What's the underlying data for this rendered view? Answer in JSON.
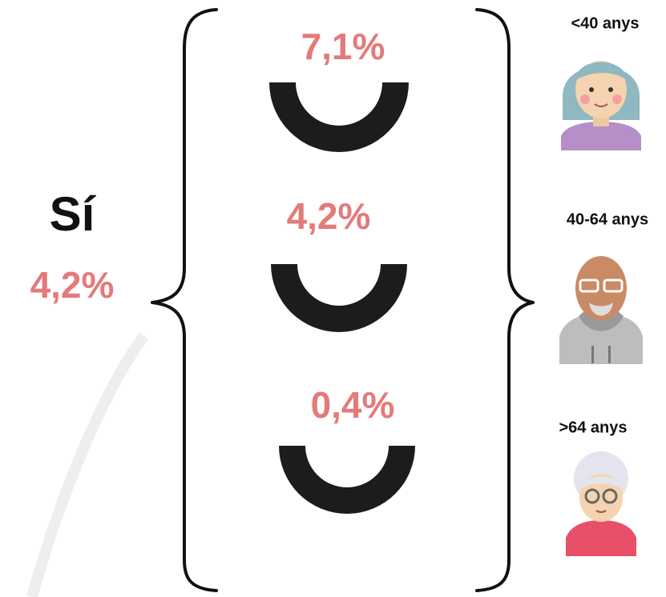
{
  "summary": {
    "label": "Sí",
    "value": "4,2%"
  },
  "groups": [
    {
      "value": "7,1%",
      "age": "<40 anys"
    },
    {
      "value": "4,2%",
      "age": "40-64 anys"
    },
    {
      "value": "0,4%",
      "age": ">64 anys"
    }
  ]
}
